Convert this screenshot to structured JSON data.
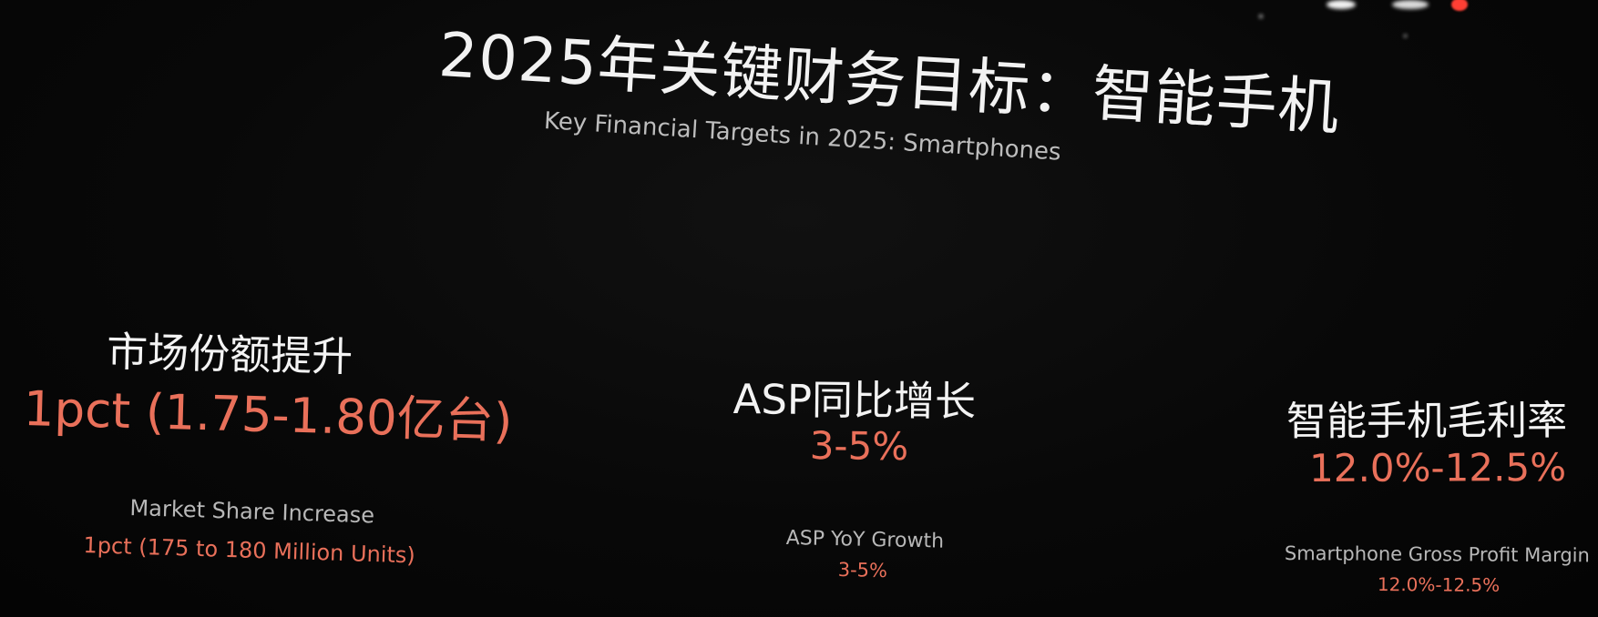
{
  "slide": {
    "title_cn": "2025年关键财务目标：智能手机",
    "title_en": "Key Financial Targets in 2025: Smartphones",
    "targets": [
      {
        "label_cn": "市场份额提升",
        "value_cn": "1pct (1.75-1.80亿台)",
        "label_en": "Market Share Increase",
        "value_en": "1pct (175 to 180 Million Units)"
      },
      {
        "label_cn": "ASP同比增长",
        "value_cn": "3-5%",
        "label_en": "ASP YoY Growth",
        "value_en": "3-5%"
      },
      {
        "label_cn": "智能手机毛利率",
        "value_cn": "12.0%-12.5%",
        "label_en": "Smartphone Gross Profit Margin",
        "value_en": "12.0%-12.5%"
      }
    ]
  },
  "colors": {
    "background": "#070707",
    "primary_text": "#f2f2f2",
    "accent_orange": "#e9705a",
    "secondary_text": "#b8b8b8"
  }
}
